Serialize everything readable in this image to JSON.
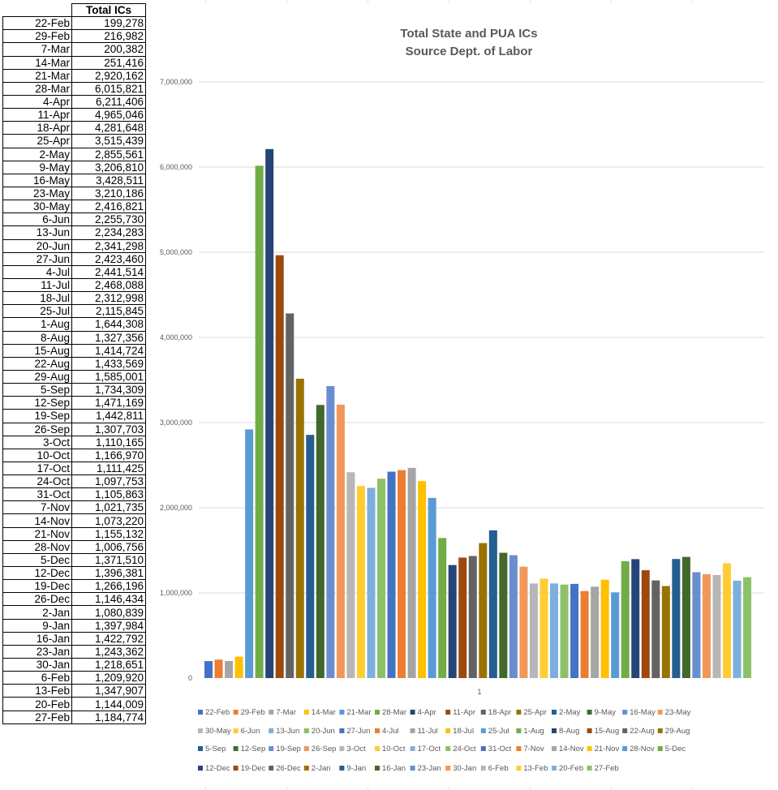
{
  "table": {
    "header": "Total ICs",
    "rows": [
      [
        "22-Feb",
        "199,278"
      ],
      [
        "29-Feb",
        "216,982"
      ],
      [
        "7-Mar",
        "200,382"
      ],
      [
        "14-Mar",
        "251,416"
      ],
      [
        "21-Mar",
        "2,920,162"
      ],
      [
        "28-Mar",
        "6,015,821"
      ],
      [
        "4-Apr",
        "6,211,406"
      ],
      [
        "11-Apr",
        "4,965,046"
      ],
      [
        "18-Apr",
        "4,281,648"
      ],
      [
        "25-Apr",
        "3,515,439"
      ],
      [
        "2-May",
        "2,855,561"
      ],
      [
        "9-May",
        "3,206,810"
      ],
      [
        "16-May",
        "3,428,511"
      ],
      [
        "23-May",
        "3,210,186"
      ],
      [
        "30-May",
        "2,416,821"
      ],
      [
        "6-Jun",
        "2,255,730"
      ],
      [
        "13-Jun",
        "2,234,283"
      ],
      [
        "20-Jun",
        "2,341,298"
      ],
      [
        "27-Jun",
        "2,423,460"
      ],
      [
        "4-Jul",
        "2,441,514"
      ],
      [
        "11-Jul",
        "2,468,088"
      ],
      [
        "18-Jul",
        "2,312,998"
      ],
      [
        "25-Jul",
        "2,115,845"
      ],
      [
        "1-Aug",
        "1,644,308"
      ],
      [
        "8-Aug",
        "1,327,356"
      ],
      [
        "15-Aug",
        "1,414,724"
      ],
      [
        "22-Aug",
        "1,433,569"
      ],
      [
        "29-Aug",
        "1,585,001"
      ],
      [
        "5-Sep",
        "1,734,309"
      ],
      [
        "12-Sep",
        "1,471,169"
      ],
      [
        "19-Sep",
        "1,442,811"
      ],
      [
        "26-Sep",
        "1,307,703"
      ],
      [
        "3-Oct",
        "1,110,165"
      ],
      [
        "10-Oct",
        "1,166,970"
      ],
      [
        "17-Oct",
        "1,111,425"
      ],
      [
        "24-Oct",
        "1,097,753"
      ],
      [
        "31-Oct",
        "1,105,863"
      ],
      [
        "7-Nov",
        "1,021,735"
      ],
      [
        "14-Nov",
        "1,073,220"
      ],
      [
        "21-Nov",
        "1,155,132"
      ],
      [
        "28-Nov",
        "1,006,756"
      ],
      [
        "5-Dec",
        "1,371,510"
      ],
      [
        "12-Dec",
        "1,396,381"
      ],
      [
        "19-Dec",
        "1,266,196"
      ],
      [
        "26-Dec",
        "1,146,434"
      ],
      [
        "2-Jan",
        "1,080,839"
      ],
      [
        "9-Jan",
        "1,397,984"
      ],
      [
        "16-Jan",
        "1,422,792"
      ],
      [
        "23-Jan",
        "1,243,362"
      ],
      [
        "30-Jan",
        "1,218,651"
      ],
      [
        "6-Feb",
        "1,209,920"
      ],
      [
        "13-Feb",
        "1,347,907"
      ],
      [
        "20-Feb",
        "1,144,009"
      ],
      [
        "27-Feb",
        "1,184,774"
      ]
    ]
  },
  "chart_data": {
    "type": "bar",
    "title": "Total State and PUA ICs",
    "subtitle": "Source Dept. of Labor",
    "categories": [
      "1"
    ],
    "ylim": [
      0,
      7000000
    ],
    "yticks": [
      0,
      1000000,
      2000000,
      3000000,
      4000000,
      5000000,
      6000000,
      7000000
    ],
    "ytick_labels": [
      "0",
      "1,000,000",
      "2,000,000",
      "3,000,000",
      "4,000,000",
      "5,000,000",
      "6,000,000",
      "7,000,000"
    ],
    "grid": true,
    "legend": "bottom",
    "series": [
      {
        "name": "22-Feb",
        "value": 199278
      },
      {
        "name": "29-Feb",
        "value": 216982
      },
      {
        "name": "7-Mar",
        "value": 200382
      },
      {
        "name": "14-Mar",
        "value": 251416
      },
      {
        "name": "21-Mar",
        "value": 2920162
      },
      {
        "name": "28-Mar",
        "value": 6015821
      },
      {
        "name": "4-Apr",
        "value": 6211406
      },
      {
        "name": "11-Apr",
        "value": 4965046
      },
      {
        "name": "18-Apr",
        "value": 4281648
      },
      {
        "name": "25-Apr",
        "value": 3515439
      },
      {
        "name": "2-May",
        "value": 2855561
      },
      {
        "name": "9-May",
        "value": 3206810
      },
      {
        "name": "16-May",
        "value": 3428511
      },
      {
        "name": "23-May",
        "value": 3210186
      },
      {
        "name": "30-May",
        "value": 2416821
      },
      {
        "name": "6-Jun",
        "value": 2255730
      },
      {
        "name": "13-Jun",
        "value": 2234283
      },
      {
        "name": "20-Jun",
        "value": 2341298
      },
      {
        "name": "27-Jun",
        "value": 2423460
      },
      {
        "name": "4-Jul",
        "value": 2441514
      },
      {
        "name": "11-Jul",
        "value": 2468088
      },
      {
        "name": "18-Jul",
        "value": 2312998
      },
      {
        "name": "25-Jul",
        "value": 2115845
      },
      {
        "name": "1-Aug",
        "value": 1644308
      },
      {
        "name": "8-Aug",
        "value": 1327356
      },
      {
        "name": "15-Aug",
        "value": 1414724
      },
      {
        "name": "22-Aug",
        "value": 1433569
      },
      {
        "name": "29-Aug",
        "value": 1585001
      },
      {
        "name": "5-Sep",
        "value": 1734309
      },
      {
        "name": "12-Sep",
        "value": 1471169
      },
      {
        "name": "19-Sep",
        "value": 1442811
      },
      {
        "name": "26-Sep",
        "value": 1307703
      },
      {
        "name": "3-Oct",
        "value": 1110165
      },
      {
        "name": "10-Oct",
        "value": 1166970
      },
      {
        "name": "17-Oct",
        "value": 1111425
      },
      {
        "name": "24-Oct",
        "value": 1097753
      },
      {
        "name": "31-Oct",
        "value": 1105863
      },
      {
        "name": "7-Nov",
        "value": 1021735
      },
      {
        "name": "14-Nov",
        "value": 1073220
      },
      {
        "name": "21-Nov",
        "value": 1155132
      },
      {
        "name": "28-Nov",
        "value": 1006756
      },
      {
        "name": "5-Dec",
        "value": 1371510
      },
      {
        "name": "12-Dec",
        "value": 1396381
      },
      {
        "name": "19-Dec",
        "value": 1266196
      },
      {
        "name": "26-Dec",
        "value": 1146434
      },
      {
        "name": "2-Jan",
        "value": 1080839
      },
      {
        "name": "9-Jan",
        "value": 1397984
      },
      {
        "name": "16-Jan",
        "value": 1422792
      },
      {
        "name": "23-Jan",
        "value": 1243362
      },
      {
        "name": "30-Jan",
        "value": 1218651
      },
      {
        "name": "6-Feb",
        "value": 1209920
      },
      {
        "name": "13-Feb",
        "value": 1347907
      },
      {
        "name": "20-Feb",
        "value": 1144009
      },
      {
        "name": "27-Feb",
        "value": 1184774
      }
    ],
    "palette": [
      "#4472c4",
      "#ed7d31",
      "#a5a5a5",
      "#ffc000",
      "#5b9bd5",
      "#70ad47",
      "#264478",
      "#9e480e",
      "#636363",
      "#997300",
      "#255e91",
      "#43682b",
      "#698ed0",
      "#f1975a",
      "#b7b7b7",
      "#ffcd33",
      "#7cafdd",
      "#8cc168"
    ]
  }
}
